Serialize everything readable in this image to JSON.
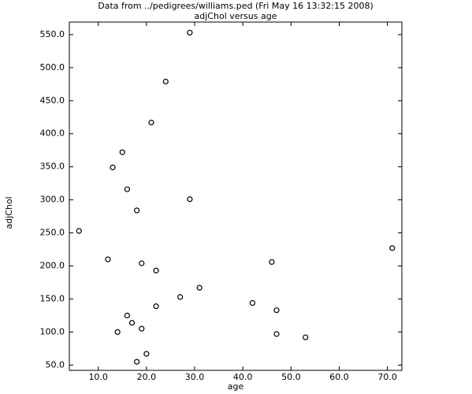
{
  "chart_data": {
    "type": "scatter",
    "title": "Data from ../pedigrees/williams.ped (Fri May 16 13:32:15 2008)",
    "subtitle": "adjChol versus age",
    "x_label": "age",
    "y_label": "adjChol",
    "color": "#000000",
    "x": [
      29,
      24,
      21,
      15,
      13,
      16,
      29,
      18,
      6,
      12,
      19,
      22,
      46,
      71,
      31,
      27,
      22,
      42,
      47,
      16,
      17,
      14,
      19,
      47,
      53,
      20,
      18
    ],
    "values": [
      553,
      479,
      417,
      372,
      349,
      316,
      301,
      284,
      253,
      210,
      204,
      193,
      206,
      227,
      167,
      153,
      139,
      144,
      133,
      125,
      114,
      100,
      105,
      97,
      92,
      67,
      55
    ],
    "xlim": [
      4,
      73
    ],
    "ylim": [
      42,
      569
    ],
    "xticks": [
      {
        "value": 10,
        "label": "10.0"
      },
      {
        "value": 20,
        "label": "20.0"
      },
      {
        "value": 30,
        "label": "30.0"
      },
      {
        "value": 40,
        "label": "40.0"
      },
      {
        "value": 50,
        "label": "50.0"
      },
      {
        "value": 60,
        "label": "60.0"
      },
      {
        "value": 70,
        "label": "70.0"
      }
    ],
    "yticks": [
      {
        "value": 50,
        "label": "50.0"
      },
      {
        "value": 100,
        "label": "100.0"
      },
      {
        "value": 150,
        "label": "150.0"
      },
      {
        "value": 200,
        "label": "200.0"
      },
      {
        "value": 250,
        "label": "250.0"
      },
      {
        "value": 300,
        "label": "300.0"
      },
      {
        "value": 350,
        "label": "350.0"
      },
      {
        "value": 400,
        "label": "400.0"
      },
      {
        "value": 450,
        "label": "450.0"
      },
      {
        "value": 500,
        "label": "500.0"
      },
      {
        "value": 550,
        "label": "550.0"
      }
    ],
    "grid": false
  }
}
